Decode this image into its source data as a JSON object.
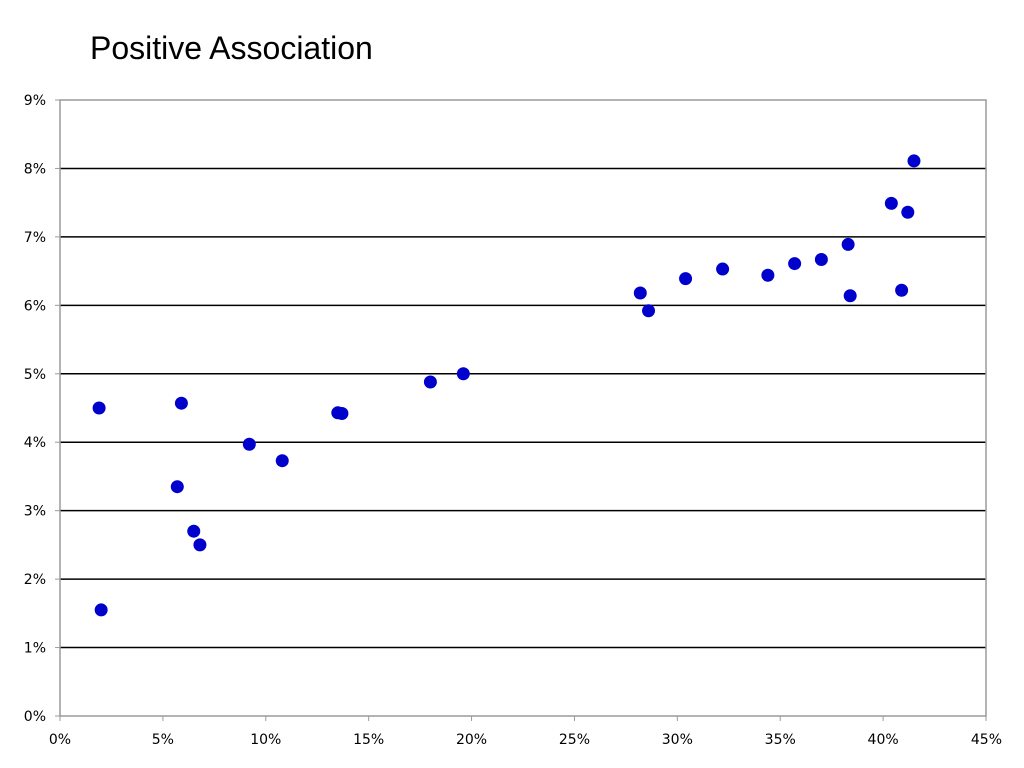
{
  "chart_data": {
    "type": "scatter",
    "title": "Positive Association",
    "xlabel": "",
    "ylabel": "",
    "xlim": [
      0,
      45
    ],
    "ylim": [
      0,
      9
    ],
    "x_ticks": [
      0,
      5,
      10,
      15,
      20,
      25,
      30,
      35,
      40,
      45
    ],
    "x_tick_labels": [
      "0%",
      "5%",
      "10%",
      "15%",
      "20%",
      "25%",
      "30%",
      "35%",
      "40%",
      "45%"
    ],
    "y_ticks": [
      0,
      1,
      2,
      3,
      4,
      5,
      6,
      7,
      8,
      9
    ],
    "y_tick_labels": [
      "0%",
      "1%",
      "2%",
      "3%",
      "4%",
      "5%",
      "6%",
      "7%",
      "8%",
      "9%"
    ],
    "grid": "horizontal",
    "legend": "none",
    "marker_color": "#0000CC",
    "series": [
      {
        "x": [
          1.9,
          2.0,
          5.7,
          5.9,
          6.5,
          6.8,
          9.2,
          10.8,
          13.5,
          13.7,
          18.0,
          19.6,
          28.2,
          28.6,
          30.4,
          32.2,
          34.4,
          35.7,
          37.0,
          38.3,
          38.4,
          40.4,
          40.9,
          41.2,
          41.5
        ],
        "y": [
          4.5,
          1.55,
          3.35,
          4.57,
          2.7,
          2.5,
          3.97,
          3.73,
          4.43,
          4.42,
          4.88,
          5.0,
          6.18,
          5.92,
          6.39,
          6.53,
          6.44,
          6.61,
          6.67,
          6.89,
          6.14,
          7.49,
          6.22,
          7.36,
          8.11
        ]
      }
    ]
  }
}
